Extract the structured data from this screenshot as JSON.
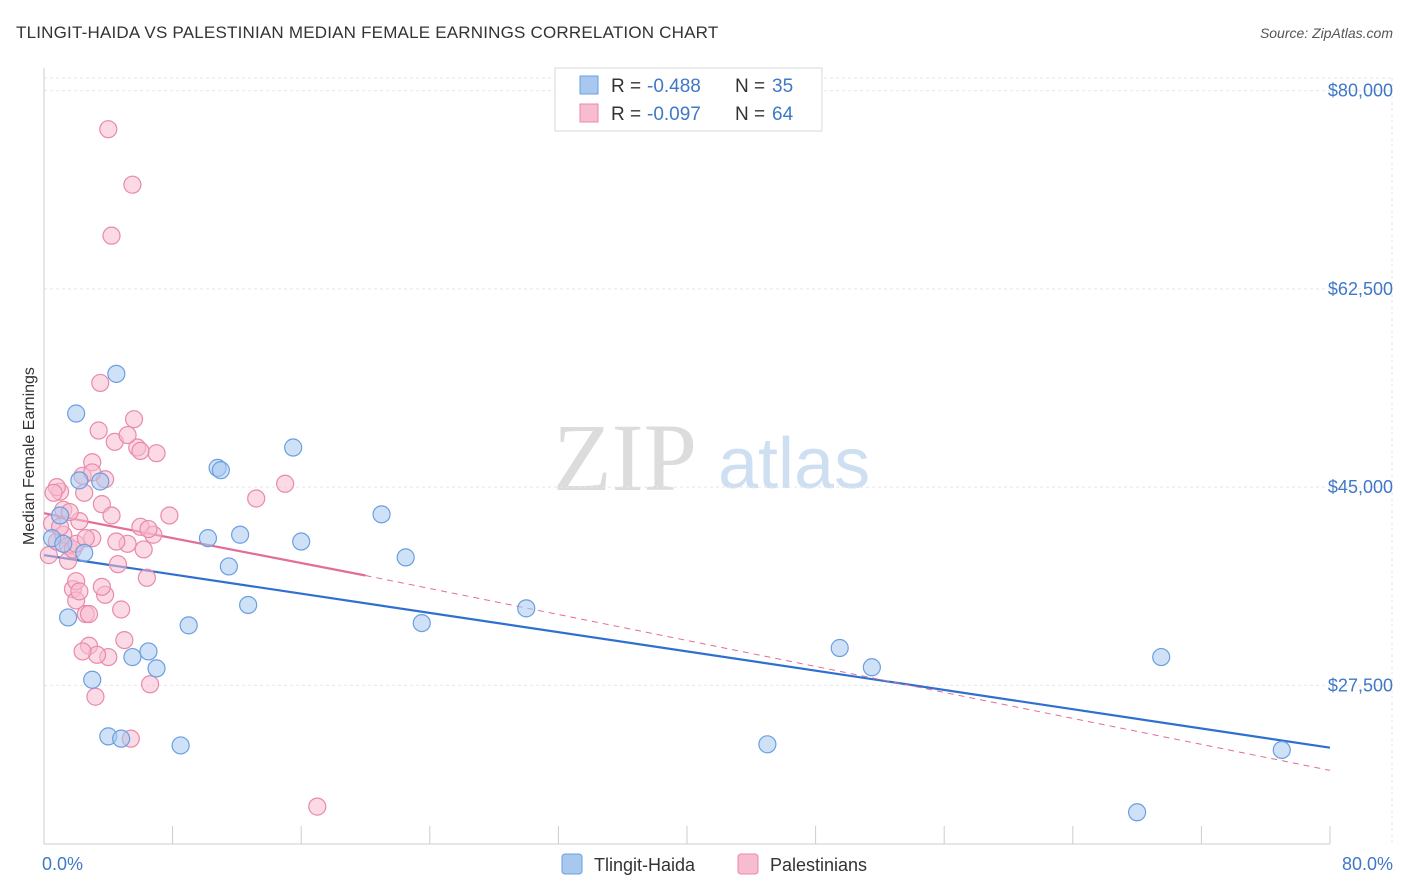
{
  "chart_data": {
    "type": "scatter",
    "title": "TLINGIT-HAIDA VS PALESTINIAN MEDIAN FEMALE EARNINGS CORRELATION CHART",
    "source": "Source: ZipAtlas.com",
    "ylabel": "Median Female Earnings",
    "xlim": [
      0,
      80
    ],
    "ylim": [
      13500,
      82000
    ],
    "x_tick_labels": [
      "0.0%",
      "80.0%"
    ],
    "y_ticks": [
      {
        "value": 27500,
        "label": "$27,500"
      },
      {
        "value": 45000,
        "label": "$45,000"
      },
      {
        "value": 62500,
        "label": "$62,500"
      },
      {
        "value": 80000,
        "label": "$80,000"
      }
    ],
    "watermark": {
      "zip": "ZIP",
      "atlas": "atlas"
    },
    "legend": [
      {
        "r_label": "R =",
        "r_value": "-0.488",
        "n_label": "N =",
        "n_value": "35",
        "color": "#a8c8f0",
        "edge": "#6a9fe0"
      },
      {
        "r_label": "R =",
        "r_value": "-0.097",
        "n_label": "N =",
        "n_value": "64",
        "color": "#f8bcd0",
        "edge": "#e88aa8"
      }
    ],
    "series": [
      {
        "name": "Tlingit-Haida",
        "color": "#a8c8f0",
        "edge": "#6a9fe0",
        "line_color": "#2f6fd0",
        "trend": {
          "x0": 0,
          "y0": 39000,
          "x1": 80,
          "y1": 22000,
          "dashed_to": 80
        },
        "points": [
          [
            0.5,
            40500
          ],
          [
            1.0,
            42500
          ],
          [
            1.5,
            33500
          ],
          [
            2.0,
            51500
          ],
          [
            2.5,
            39200
          ],
          [
            3.0,
            28000
          ],
          [
            3.5,
            45500
          ],
          [
            4.0,
            23000
          ],
          [
            4.5,
            55000
          ],
          [
            4.8,
            22800
          ],
          [
            5.5,
            30000
          ],
          [
            6.5,
            30500
          ],
          [
            7.0,
            29000
          ],
          [
            8.5,
            22200
          ],
          [
            9.0,
            32800
          ],
          [
            10.2,
            40500
          ],
          [
            10.8,
            46700
          ],
          [
            11.0,
            46500
          ],
          [
            11.5,
            38000
          ],
          [
            12.2,
            40800
          ],
          [
            12.7,
            34600
          ],
          [
            15.5,
            48500
          ],
          [
            16.0,
            40200
          ],
          [
            21.0,
            42600
          ],
          [
            22.5,
            38800
          ],
          [
            23.5,
            33000
          ],
          [
            30.0,
            34300
          ],
          [
            45.0,
            22300
          ],
          [
            49.5,
            30800
          ],
          [
            51.5,
            29100
          ],
          [
            68.0,
            16300
          ],
          [
            69.5,
            30000
          ],
          [
            77.0,
            21800
          ],
          [
            1.2,
            40000
          ],
          [
            2.2,
            45600
          ]
        ]
      },
      {
        "name": "Palestinians",
        "color": "#f8bcd0",
        "edge": "#e88aa8",
        "line_color": "#e26d99",
        "trend": {
          "x0": 0,
          "y0": 42700,
          "x1": 20,
          "y1": 37200,
          "dashed_to": 80,
          "dash_end_y": 20000
        },
        "points": [
          [
            0.3,
            39000
          ],
          [
            0.5,
            41800
          ],
          [
            0.8,
            40200
          ],
          [
            1.0,
            44600
          ],
          [
            1.2,
            40800
          ],
          [
            1.5,
            39800
          ],
          [
            1.8,
            36000
          ],
          [
            2.0,
            35000
          ],
          [
            2.2,
            42000
          ],
          [
            2.4,
            46000
          ],
          [
            2.6,
            33800
          ],
          [
            2.8,
            31000
          ],
          [
            3.0,
            47200
          ],
          [
            3.2,
            26500
          ],
          [
            3.4,
            50000
          ],
          [
            3.6,
            43500
          ],
          [
            3.8,
            35500
          ],
          [
            4.0,
            30000
          ],
          [
            4.2,
            42500
          ],
          [
            4.4,
            49000
          ],
          [
            4.6,
            38200
          ],
          [
            4.8,
            34200
          ],
          [
            5.0,
            31500
          ],
          [
            5.2,
            40000
          ],
          [
            5.4,
            22800
          ],
          [
            5.6,
            51000
          ],
          [
            5.8,
            48500
          ],
          [
            6.0,
            41500
          ],
          [
            6.2,
            39500
          ],
          [
            6.4,
            37000
          ],
          [
            6.6,
            27600
          ],
          [
            6.8,
            40800
          ],
          [
            7.0,
            48000
          ],
          [
            4.0,
            76600
          ],
          [
            5.5,
            71700
          ],
          [
            4.2,
            67200
          ],
          [
            3.5,
            54200
          ],
          [
            7.8,
            42500
          ],
          [
            13.2,
            44000
          ],
          [
            15.0,
            45300
          ],
          [
            17.0,
            16800
          ],
          [
            2.0,
            36700
          ],
          [
            1.5,
            38500
          ],
          [
            2.5,
            44500
          ],
          [
            3.0,
            40500
          ],
          [
            0.8,
            45000
          ],
          [
            1.2,
            43000
          ],
          [
            1.8,
            39500
          ],
          [
            2.2,
            35800
          ],
          [
            2.8,
            33800
          ],
          [
            3.3,
            30200
          ],
          [
            3.8,
            45700
          ],
          [
            4.5,
            40200
          ],
          [
            5.2,
            49600
          ],
          [
            6.0,
            48200
          ],
          [
            6.5,
            41300
          ],
          [
            2.0,
            40000
          ],
          [
            1.0,
            41500
          ],
          [
            1.6,
            42800
          ],
          [
            2.4,
            30500
          ],
          [
            3.0,
            46300
          ],
          [
            3.6,
            36200
          ],
          [
            0.6,
            44500
          ],
          [
            2.6,
            40500
          ]
        ]
      }
    ]
  }
}
